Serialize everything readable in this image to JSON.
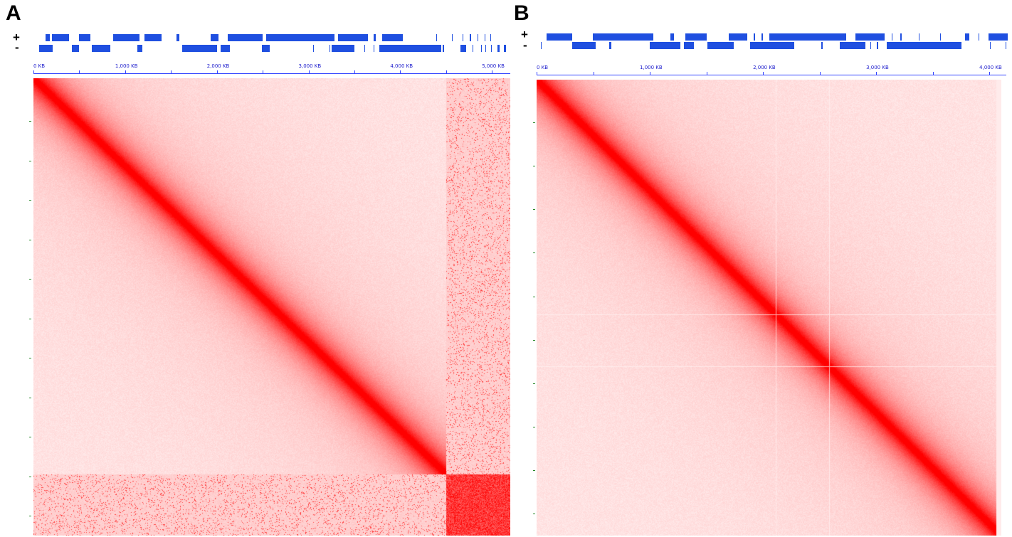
{
  "panels": [
    {
      "id": "A",
      "label": "A",
      "strand_labels": {
        "plus": "+",
        "minus": "-"
      },
      "ruler": {
        "unit": "KB",
        "max_kb": 5200,
        "tick_labels": [
          "0 KB",
          "1,000 KB",
          "2,000 KB",
          "3,000 KB",
          "4,000 KB",
          "5,000 KB"
        ],
        "tick_values_kb": [
          0,
          1000,
          2000,
          3000,
          4000,
          5000
        ],
        "minor_tick_values_kb": [
          500,
          1500,
          2500,
          3500,
          4500
        ]
      },
      "genes_plus_kb": [
        [
          130,
          180
        ],
        [
          200,
          390
        ],
        [
          500,
          620
        ],
        [
          870,
          1160
        ],
        [
          1210,
          1400
        ],
        [
          1560,
          1590
        ],
        [
          1930,
          2020
        ],
        [
          2120,
          2500
        ],
        [
          2540,
          3280
        ],
        [
          3320,
          3650
        ],
        [
          3710,
          3730
        ],
        [
          3800,
          4030
        ],
        [
          4390,
          4400
        ],
        [
          4560,
          4570
        ],
        [
          4680,
          4690
        ],
        [
          4760,
          4770
        ],
        [
          4840,
          4850
        ],
        [
          4920,
          4930
        ],
        [
          4980,
          4990
        ]
      ],
      "genes_minus_kb": [
        [
          60,
          210
        ],
        [
          420,
          500
        ],
        [
          640,
          840
        ],
        [
          1130,
          1190
        ],
        [
          1620,
          2000
        ],
        [
          2040,
          2140
        ],
        [
          2490,
          2580
        ],
        [
          3050,
          3060
        ],
        [
          3230,
          3240
        ],
        [
          3250,
          3500
        ],
        [
          3610,
          3620
        ],
        [
          3710,
          3720
        ],
        [
          3770,
          4450
        ],
        [
          4460,
          4480
        ],
        [
          4660,
          4720
        ],
        [
          4790,
          4800
        ],
        [
          4880,
          4890
        ],
        [
          4930,
          4940
        ],
        [
          4990,
          5000
        ],
        [
          5060,
          5080
        ],
        [
          5130,
          5150
        ]
      ],
      "heatmap": {
        "matrix_colors": {
          "low": "#fde8e8",
          "high": "#ff0000"
        },
        "anomaly_block_start_kb": 4500
      }
    },
    {
      "id": "B",
      "label": "B",
      "strand_labels": {
        "plus": "+",
        "minus": "-"
      },
      "ruler": {
        "unit": "KB",
        "max_kb": 4150,
        "tick_labels": [
          "0 KB",
          "1,000 KB",
          "2,000 KB",
          "3,000 KB",
          "4,000 KB"
        ],
        "tick_values_kb": [
          0,
          1000,
          2000,
          3000,
          4000
        ],
        "minor_tick_values_kb": [
          500,
          1500,
          2500,
          3500
        ]
      },
      "genes_plus_kb": [
        [
          60,
          290
        ],
        [
          470,
          1010
        ],
        [
          1160,
          1190
        ],
        [
          1290,
          1480
        ],
        [
          1680,
          1840
        ],
        [
          1900,
          1910
        ],
        [
          1970,
          1980
        ],
        [
          2040,
          2720
        ],
        [
          2800,
          3060
        ],
        [
          3120,
          3130
        ],
        [
          3200,
          3210
        ],
        [
          3360,
          3370
        ],
        [
          3550,
          3560
        ],
        [
          3770,
          3810
        ],
        [
          3890,
          3900
        ],
        [
          3980,
          4150
        ]
      ],
      "genes_minus_kb": [
        [
          10,
          20
        ],
        [
          290,
          500
        ],
        [
          620,
          640
        ],
        [
          980,
          1250
        ],
        [
          1280,
          1370
        ],
        [
          1490,
          1720
        ],
        [
          1870,
          2260
        ],
        [
          2500,
          2510
        ],
        [
          2660,
          2890
        ],
        [
          2930,
          2940
        ],
        [
          2990,
          3000
        ],
        [
          3080,
          3740
        ],
        [
          3990,
          4000
        ],
        [
          4130,
          4140
        ]
      ],
      "heatmap": {
        "matrix_colors": {
          "low": "#fde8e8",
          "high": "#ff0000"
        }
      }
    }
  ]
}
